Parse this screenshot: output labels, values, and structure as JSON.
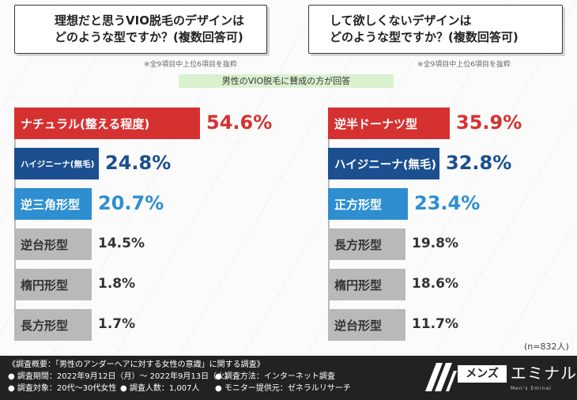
{
  "left": {
    "question_line1": "理想だと思うVIO脱毛のデザインは",
    "question_line2": "どのような型ですか？(複数回答可)",
    "note": "※全9項目中上位6項目を抜粋"
  },
  "right": {
    "question_line1": "して欲しくないデザインは",
    "question_line2": "どのような型ですか？(複数回答可)",
    "note": "※全9項目中上位6項目を抜粋"
  },
  "banner": "男性のVIO脱毛に賛成の方が回答",
  "sample_note": "(n=832人)",
  "colors": {
    "red": "#d63131",
    "blue": "#1b4f8f",
    "light_blue": "#2e8ed0",
    "gray": "#b9b9b9"
  },
  "chart_data": [
    {
      "type": "bar",
      "categories": [
        "ナチュラル(整える程度)",
        "ハイジニーナ(無毛)",
        "逆三角形型",
        "逆台形型",
        "楕円形型",
        "長方形型"
      ],
      "values": [
        54.6,
        24.8,
        20.7,
        14.5,
        1.8,
        1.7
      ],
      "value_labels": [
        "54.6%",
        "24.8%",
        "20.7%",
        "14.5%",
        "1.8%",
        "1.7%"
      ],
      "colors": [
        "red",
        "blue",
        "light_blue",
        "gray",
        "gray",
        "gray"
      ],
      "title": "理想だと思うVIO脱毛のデザインはどのような型ですか？(複数回答可)",
      "unit": "%"
    },
    {
      "type": "bar",
      "categories": [
        "逆半ドーナツ型",
        "ハイジニーナ(無毛)",
        "正方形型",
        "長方形型",
        "楕円形型",
        "逆台形型"
      ],
      "values": [
        35.9,
        32.8,
        23.4,
        19.8,
        18.6,
        11.7
      ],
      "value_labels": [
        "35.9%",
        "32.8%",
        "23.4%",
        "19.8%",
        "18.6%",
        "11.7%"
      ],
      "colors": [
        "red",
        "blue",
        "light_blue",
        "gray",
        "gray",
        "gray"
      ],
      "title": "して欲しくないデザインはどのような型ですか？(複数回答可)",
      "unit": "%"
    }
  ],
  "footer": {
    "summary": "《調査概要：「男性のアンダーヘアに対する女性の意識」に関する調査》",
    "period": "● 調査期間：2022年9月12日（月）～ 2022年9月13日（火）",
    "method": "● 調査方法：インターネット調査",
    "target": "● 調査対象：20代～30代女性",
    "count": "● 調査人数：1,007人",
    "provider": "● モニター提供元：ゼネラルリサーチ",
    "logo_box": "メンズ",
    "logo_text": "エミナル",
    "logo_sub": "Men's Eminal"
  }
}
